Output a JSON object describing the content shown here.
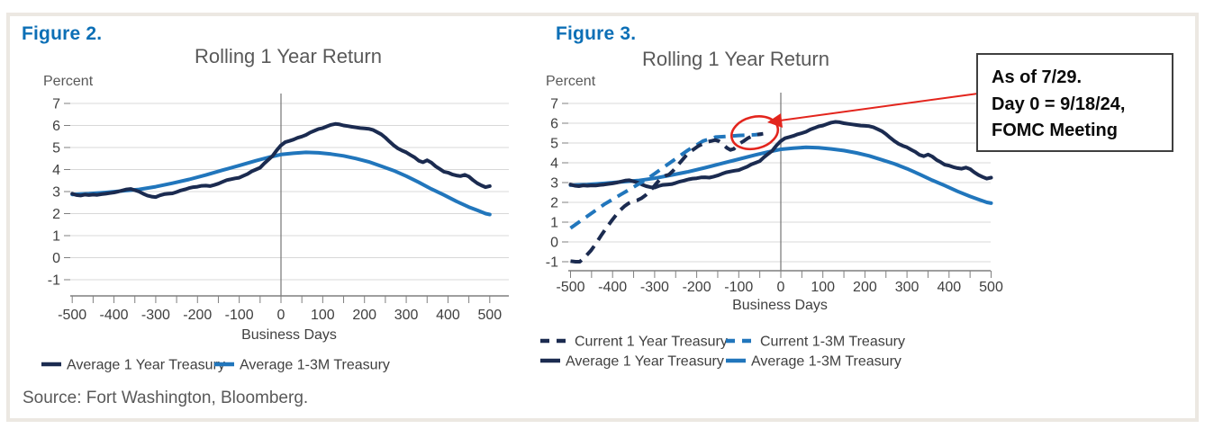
{
  "page": {
    "source_text": "Source: Fort Washington, Bloomberg."
  },
  "colors": {
    "navy": "#1B2B50",
    "blue": "#2176BC",
    "figure_label_blue": "#0C6FB6",
    "title_gray": "#595959",
    "tick_label_gray": "#3F3F3F",
    "gridline_gray": "#D8D8D8",
    "axis_gray": "#7F7F7F",
    "accent_red": "#E3251D",
    "frame_border_beige": "#ECE8E2",
    "annotation_border": "#3F3F3F"
  },
  "chart_data": [
    {
      "type": "line",
      "figure_label": "Figure 2.",
      "title": "Rolling 1 Year Return",
      "ylabel": "Percent",
      "xlabel": "Business Days",
      "xlim": [
        -500,
        500
      ],
      "ylim": [
        -1,
        7
      ],
      "x_ticks": [
        -500,
        -400,
        -300,
        -200,
        -100,
        0,
        100,
        200,
        300,
        400,
        500
      ],
      "x_minor_tick_step": 50,
      "y_ticks": [
        -1,
        0,
        1,
        2,
        3,
        4,
        5,
        6,
        7
      ],
      "grid": "horizontal",
      "zero_day_vertical_line": true,
      "legend_position": "bottom",
      "series": [
        {
          "name": "Average 1 Year Treasury",
          "color": "#1B2B50",
          "dash": false,
          "points": [
            [
              -500,
              2.9
            ],
            [
              -490,
              2.84
            ],
            [
              -480,
              2.82
            ],
            [
              -470,
              2.86
            ],
            [
              -460,
              2.84
            ],
            [
              -450,
              2.86
            ],
            [
              -440,
              2.85
            ],
            [
              -430,
              2.88
            ],
            [
              -420,
              2.9
            ],
            [
              -410,
              2.93
            ],
            [
              -400,
              2.96
            ],
            [
              -390,
              3.0
            ],
            [
              -380,
              3.05
            ],
            [
              -370,
              3.1
            ],
            [
              -360,
              3.12
            ],
            [
              -350,
              3.06
            ],
            [
              -340,
              3.0
            ],
            [
              -330,
              2.9
            ],
            [
              -320,
              2.82
            ],
            [
              -310,
              2.77
            ],
            [
              -300,
              2.75
            ],
            [
              -290,
              2.83
            ],
            [
              -280,
              2.88
            ],
            [
              -270,
              2.9
            ],
            [
              -260,
              2.92
            ],
            [
              -250,
              2.98
            ],
            [
              -240,
              3.05
            ],
            [
              -230,
              3.1
            ],
            [
              -220,
              3.16
            ],
            [
              -210,
              3.2
            ],
            [
              -200,
              3.22
            ],
            [
              -190,
              3.26
            ],
            [
              -180,
              3.27
            ],
            [
              -170,
              3.25
            ],
            [
              -160,
              3.3
            ],
            [
              -150,
              3.36
            ],
            [
              -140,
              3.44
            ],
            [
              -130,
              3.52
            ],
            [
              -120,
              3.56
            ],
            [
              -110,
              3.6
            ],
            [
              -100,
              3.63
            ],
            [
              -90,
              3.72
            ],
            [
              -80,
              3.8
            ],
            [
              -70,
              3.92
            ],
            [
              -60,
              4.0
            ],
            [
              -50,
              4.08
            ],
            [
              -40,
              4.28
            ],
            [
              -30,
              4.45
            ],
            [
              -20,
              4.62
            ],
            [
              -10,
              4.88
            ],
            [
              0,
              5.1
            ],
            [
              10,
              5.24
            ],
            [
              20,
              5.3
            ],
            [
              30,
              5.36
            ],
            [
              40,
              5.44
            ],
            [
              50,
              5.5
            ],
            [
              60,
              5.57
            ],
            [
              70,
              5.68
            ],
            [
              80,
              5.76
            ],
            [
              90,
              5.84
            ],
            [
              100,
              5.88
            ],
            [
              110,
              5.96
            ],
            [
              120,
              6.03
            ],
            [
              130,
              6.07
            ],
            [
              140,
              6.05
            ],
            [
              150,
              6.0
            ],
            [
              160,
              5.97
            ],
            [
              170,
              5.94
            ],
            [
              180,
              5.91
            ],
            [
              190,
              5.88
            ],
            [
              200,
              5.87
            ],
            [
              210,
              5.85
            ],
            [
              220,
              5.8
            ],
            [
              230,
              5.7
            ],
            [
              240,
              5.6
            ],
            [
              250,
              5.45
            ],
            [
              260,
              5.27
            ],
            [
              270,
              5.1
            ],
            [
              280,
              4.96
            ],
            [
              290,
              4.86
            ],
            [
              300,
              4.78
            ],
            [
              310,
              4.66
            ],
            [
              320,
              4.55
            ],
            [
              330,
              4.4
            ],
            [
              340,
              4.33
            ],
            [
              350,
              4.42
            ],
            [
              360,
              4.32
            ],
            [
              370,
              4.15
            ],
            [
              380,
              4.03
            ],
            [
              390,
              3.9
            ],
            [
              400,
              3.86
            ],
            [
              410,
              3.78
            ],
            [
              420,
              3.73
            ],
            [
              430,
              3.7
            ],
            [
              440,
              3.76
            ],
            [
              450,
              3.68
            ],
            [
              460,
              3.52
            ],
            [
              470,
              3.38
            ],
            [
              480,
              3.28
            ],
            [
              490,
              3.2
            ],
            [
              500,
              3.25
            ]
          ]
        },
        {
          "name": "Average 1-3M Treasury",
          "color": "#2176BC",
          "dash": false,
          "points": [
            [
              -500,
              2.87
            ],
            [
              -460,
              2.9
            ],
            [
              -420,
              2.96
            ],
            [
              -380,
              3.03
            ],
            [
              -340,
              3.1
            ],
            [
              -300,
              3.22
            ],
            [
              -260,
              3.38
            ],
            [
              -220,
              3.55
            ],
            [
              -180,
              3.75
            ],
            [
              -140,
              3.97
            ],
            [
              -100,
              4.18
            ],
            [
              -60,
              4.4
            ],
            [
              -30,
              4.55
            ],
            [
              0,
              4.68
            ],
            [
              30,
              4.74
            ],
            [
              60,
              4.78
            ],
            [
              90,
              4.76
            ],
            [
              120,
              4.7
            ],
            [
              150,
              4.62
            ],
            [
              180,
              4.5
            ],
            [
              210,
              4.35
            ],
            [
              240,
              4.15
            ],
            [
              270,
              3.95
            ],
            [
              300,
              3.7
            ],
            [
              330,
              3.42
            ],
            [
              360,
              3.12
            ],
            [
              390,
              2.85
            ],
            [
              420,
              2.56
            ],
            [
              450,
              2.3
            ],
            [
              470,
              2.15
            ],
            [
              490,
              2.0
            ],
            [
              500,
              1.96
            ]
          ]
        }
      ],
      "legend_rows": [
        [
          0,
          1
        ]
      ]
    },
    {
      "type": "line",
      "figure_label": "Figure 3.",
      "title": "Rolling 1 Year Return",
      "ylabel": "Percent",
      "xlabel": "Business Days",
      "xlim": [
        -500,
        500
      ],
      "ylim": [
        -1,
        7
      ],
      "x_ticks": [
        -500,
        -400,
        -300,
        -200,
        -100,
        0,
        100,
        200,
        300,
        400,
        500
      ],
      "x_minor_tick_step": 50,
      "y_ticks": [
        -1,
        0,
        1,
        2,
        3,
        4,
        5,
        6,
        7
      ],
      "grid": "horizontal",
      "zero_day_vertical_line": true,
      "legend_position": "bottom",
      "series": [
        {
          "name": "Current 1 Year Treasury",
          "color": "#1B2B50",
          "dash": true,
          "points": [
            [
              -500,
              -0.97
            ],
            [
              -488,
              -1.0
            ],
            [
              -478,
              -1.0
            ],
            [
              -465,
              -0.75
            ],
            [
              -452,
              -0.45
            ],
            [
              -440,
              -0.1
            ],
            [
              -428,
              0.3
            ],
            [
              -415,
              0.7
            ],
            [
              -403,
              1.05
            ],
            [
              -392,
              1.35
            ],
            [
              -382,
              1.6
            ],
            [
              -372,
              1.8
            ],
            [
              -362,
              1.95
            ],
            [
              -352,
              2.05
            ],
            [
              -342,
              2.1
            ],
            [
              -332,
              2.2
            ],
            [
              -322,
              2.35
            ],
            [
              -312,
              2.55
            ],
            [
              -302,
              2.8
            ],
            [
              -292,
              3.05
            ],
            [
              -283,
              3.25
            ],
            [
              -274,
              3.35
            ],
            [
              -266,
              3.4
            ],
            [
              -256,
              3.6
            ],
            [
              -246,
              3.85
            ],
            [
              -236,
              4.1
            ],
            [
              -226,
              4.35
            ],
            [
              -216,
              4.55
            ],
            [
              -206,
              4.7
            ],
            [
              -196,
              4.85
            ],
            [
              -186,
              4.95
            ],
            [
              -176,
              5.05
            ],
            [
              -166,
              5.1
            ],
            [
              -156,
              5.15
            ],
            [
              -148,
              5.1
            ],
            [
              -138,
              4.95
            ],
            [
              -128,
              4.75
            ],
            [
              -120,
              4.65
            ],
            [
              -112,
              4.7
            ],
            [
              -104,
              4.85
            ],
            [
              -96,
              5.0
            ],
            [
              -88,
              5.1
            ],
            [
              -78,
              5.25
            ],
            [
              -68,
              5.35
            ],
            [
              -58,
              5.42
            ],
            [
              -48,
              5.45
            ],
            [
              -42,
              5.47
            ]
          ]
        },
        {
          "name": "Current 1-3M Treasury",
          "color": "#2176BC",
          "dash": true,
          "points": [
            [
              -500,
              0.7
            ],
            [
              -480,
              1.0
            ],
            [
              -460,
              1.3
            ],
            [
              -440,
              1.6
            ],
            [
              -420,
              1.9
            ],
            [
              -400,
              2.15
            ],
            [
              -380,
              2.4
            ],
            [
              -360,
              2.65
            ],
            [
              -340,
              2.9
            ],
            [
              -320,
              3.15
            ],
            [
              -300,
              3.45
            ],
            [
              -280,
              3.75
            ],
            [
              -260,
              4.05
            ],
            [
              -240,
              4.35
            ],
            [
              -220,
              4.65
            ],
            [
              -200,
              4.9
            ],
            [
              -185,
              5.1
            ],
            [
              -170,
              5.2
            ],
            [
              -155,
              5.3
            ],
            [
              -140,
              5.32
            ],
            [
              -120,
              5.35
            ],
            [
              -100,
              5.38
            ],
            [
              -80,
              5.4
            ],
            [
              -60,
              5.42
            ],
            [
              -45,
              5.45
            ]
          ]
        },
        {
          "name": "Average 1 Year Treasury",
          "color": "#1B2B50",
          "dash": false,
          "points_ref": {
            "chart": 0,
            "series": 0
          }
        },
        {
          "name": "Average 1-3M Treasury",
          "color": "#2176BC",
          "dash": false,
          "points_ref": {
            "chart": 0,
            "series": 1
          }
        }
      ],
      "legend_rows": [
        [
          0,
          1
        ],
        [
          2,
          3
        ]
      ],
      "annotation": {
        "lines": [
          "As of 7/29.",
          "Day 0 = 9/18/24,",
          "FOMC Meeting"
        ],
        "border_color": "#3F3F3F"
      },
      "highlight_ellipse": {
        "center_day": -62,
        "center_value": 5.52,
        "rx_days": 56,
        "ry_value": 0.8,
        "rotation_deg": -14,
        "color": "#E3251D",
        "meaning": "circles the latest points of the Current series"
      }
    }
  ]
}
